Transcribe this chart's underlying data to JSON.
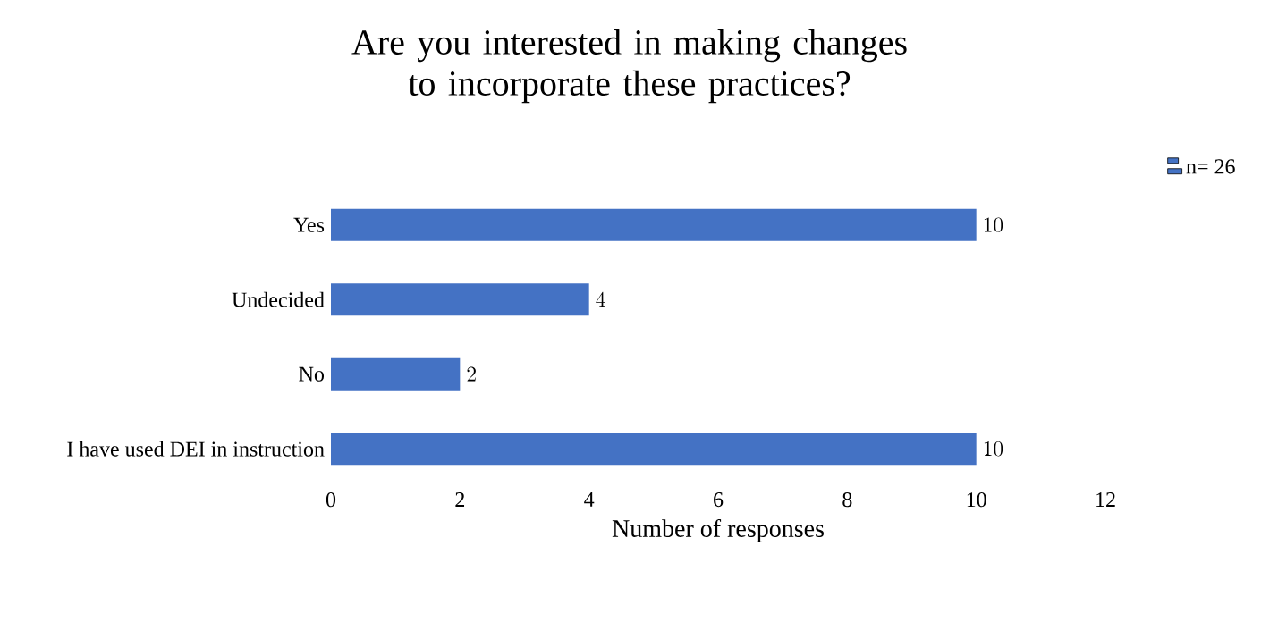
{
  "chart_data": {
    "type": "bar",
    "orientation": "horizontal",
    "title": "Are you interested in making changes to incorporate these practices?",
    "xlabel": "Number of responses",
    "categories": [
      "Yes",
      "Undecided",
      "No",
      "I have used DEI in instruction"
    ],
    "series": [
      {
        "name": "n= 26",
        "color": "#4472c4",
        "values": [
          10,
          4,
          2,
          10
        ]
      }
    ],
    "xlim": [
      0,
      12
    ],
    "xticks": [
      0,
      2,
      4,
      6,
      8,
      10,
      12
    ],
    "data_labels": true,
    "legend": "top right",
    "grid": false
  }
}
